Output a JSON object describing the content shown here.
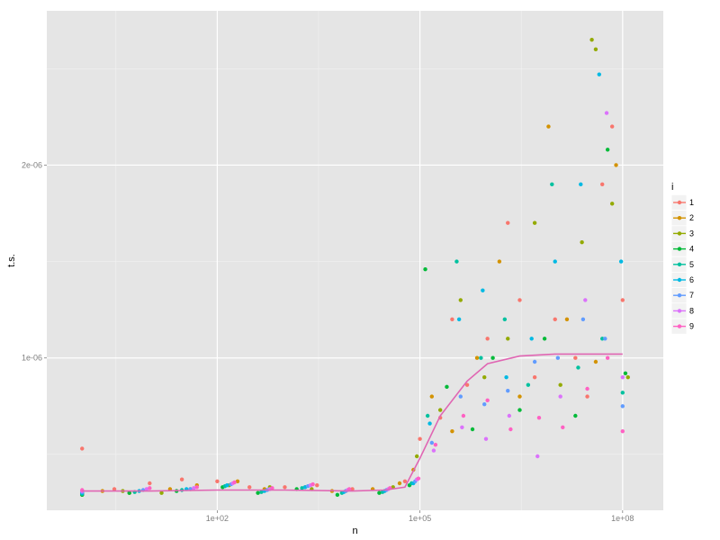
{
  "chart_data": {
    "type": "scatter",
    "title": "",
    "xlabel": "n",
    "ylabel": "t.s.",
    "x_scale": "log10",
    "xlim": [
      0.3,
      400000000
    ],
    "ylim": [
      2.1e-07,
      2.8e-06
    ],
    "x_ticks": [
      {
        "value": 100,
        "label": "1e+02"
      },
      {
        "value": 100000,
        "label": "1e+05"
      },
      {
        "value": 100000000,
        "label": "1e+08"
      }
    ],
    "y_ticks": [
      {
        "value": 1e-06,
        "label": "1e-06"
      },
      {
        "value": 2e-06,
        "label": "2e-06"
      }
    ],
    "grid": true,
    "legend": {
      "title": "i",
      "position": "right",
      "entries": [
        "1",
        "2",
        "3",
        "4",
        "5",
        "6",
        "7",
        "8",
        "9"
      ]
    },
    "colors": [
      "#F8766D",
      "#D39200",
      "#93AA00",
      "#00BA38",
      "#00C19F",
      "#00B9E3",
      "#619CFF",
      "#DB72FB",
      "#FF61C3"
    ],
    "smooth_color": "#E066B3",
    "smooth_line": {
      "x": [
        1,
        10,
        100,
        1000,
        10000,
        30000,
        60000,
        100000,
        200000,
        500000,
        1000000,
        3000000,
        10000000,
        30000000,
        100000000
      ],
      "y": [
        3.1e-07,
        3.1e-07,
        3.15e-07,
        3.15e-07,
        3.1e-07,
        3.15e-07,
        3.3e-07,
        4.8e-07,
        7e-07,
        8.8e-07,
        9.7e-07,
        1.01e-06,
        1.02e-06,
        1.02e-06,
        1.02e-06
      ]
    },
    "series": [
      {
        "name": "1",
        "points": [
          [
            1,
            5.3e-07
          ],
          [
            1,
            3e-07
          ],
          [
            3,
            3.2e-07
          ],
          [
            10,
            3.5e-07
          ],
          [
            30,
            3.7e-07
          ],
          [
            100,
            3.6e-07
          ],
          [
            300,
            3.3e-07
          ],
          [
            1000,
            3.3e-07
          ],
          [
            3000,
            3.4e-07
          ],
          [
            10000,
            3.2e-07
          ],
          [
            30000,
            3.1e-07
          ],
          [
            60000,
            3.6e-07
          ],
          [
            100000,
            5.8e-07
          ],
          [
            200000,
            6.9e-07
          ],
          [
            300000,
            1.2e-06
          ],
          [
            500000,
            8.6e-07
          ],
          [
            1000000,
            1.1e-06
          ],
          [
            2000000,
            1.7e-06
          ],
          [
            3000000,
            1.3e-06
          ],
          [
            5000000,
            9e-07
          ],
          [
            10000000,
            1.2e-06
          ],
          [
            20000000,
            1e-06
          ],
          [
            30000000,
            8e-07
          ],
          [
            50000000,
            1.9e-06
          ],
          [
            70000000,
            2.2e-06
          ],
          [
            100000000,
            1.3e-06
          ]
        ]
      },
      {
        "name": "2",
        "points": [
          [
            1,
            2.9e-07
          ],
          [
            2,
            3.1e-07
          ],
          [
            5,
            3e-07
          ],
          [
            20,
            3.2e-07
          ],
          [
            50,
            3.4e-07
          ],
          [
            200,
            3.6e-07
          ],
          [
            500,
            3.2e-07
          ],
          [
            2000,
            3.3e-07
          ],
          [
            5000,
            3.1e-07
          ],
          [
            20000,
            3.2e-07
          ],
          [
            50000,
            3.5e-07
          ],
          [
            80000,
            4.2e-07
          ],
          [
            150000,
            8e-07
          ],
          [
            300000,
            6.2e-07
          ],
          [
            700000,
            1e-06
          ],
          [
            1500000,
            1.5e-06
          ],
          [
            3000000,
            8e-07
          ],
          [
            8000000,
            2.2e-06
          ],
          [
            15000000,
            1.2e-06
          ],
          [
            40000000,
            9.8e-07
          ],
          [
            80000000,
            2e-06
          ]
        ]
      },
      {
        "name": "3",
        "points": [
          [
            1,
            3e-07
          ],
          [
            4,
            3.1e-07
          ],
          [
            15,
            3e-07
          ],
          [
            40,
            3.2e-07
          ],
          [
            150,
            3.4e-07
          ],
          [
            600,
            3.3e-07
          ],
          [
            2500,
            3.2e-07
          ],
          [
            8000,
            3.1e-07
          ],
          [
            40000,
            3.3e-07
          ],
          [
            90000,
            4.9e-07
          ],
          [
            200000,
            7.3e-07
          ],
          [
            400000,
            1.3e-06
          ],
          [
            900000,
            9e-07
          ],
          [
            2000000,
            1.1e-06
          ],
          [
            5000000,
            1.7e-06
          ],
          [
            12000000,
            8.6e-07
          ],
          [
            25000000,
            1.6e-06
          ],
          [
            35000000,
            2.65e-06
          ],
          [
            40000000,
            2.6e-06
          ],
          [
            70000000,
            1.8e-06
          ],
          [
            120000000,
            9e-07
          ]
        ]
      },
      {
        "name": "4",
        "points": [
          [
            1,
            2.9e-07
          ],
          [
            5,
            3e-07
          ],
          [
            25,
            3.1e-07
          ],
          [
            120,
            3.3e-07
          ],
          [
            400,
            3e-07
          ],
          [
            1500,
            3.2e-07
          ],
          [
            6000,
            2.9e-07
          ],
          [
            25000,
            3e-07
          ],
          [
            70000,
            3.4e-07
          ],
          [
            120000,
            1.46e-06
          ],
          [
            250000,
            8.5e-07
          ],
          [
            600000,
            6.3e-07
          ],
          [
            1200000,
            1e-06
          ],
          [
            3000000,
            7.3e-07
          ],
          [
            7000000,
            1.1e-06
          ],
          [
            20000000,
            7e-07
          ],
          [
            60000000,
            2.08e-06
          ],
          [
            110000000,
            9.2e-07
          ]
        ]
      },
      {
        "name": "5",
        "points": [
          [
            1,
            2.95e-07
          ],
          [
            6,
            3.05e-07
          ],
          [
            30,
            3.15e-07
          ],
          [
            130,
            3.35e-07
          ],
          [
            450,
            3.05e-07
          ],
          [
            1800,
            3.25e-07
          ],
          [
            7000,
            3e-07
          ],
          [
            28000,
            3.05e-07
          ],
          [
            75000,
            3.5e-07
          ],
          [
            130000,
            7e-07
          ],
          [
            350000,
            1.5e-06
          ],
          [
            800000,
            1e-06
          ],
          [
            1800000,
            1.2e-06
          ],
          [
            4000000,
            8.6e-07
          ],
          [
            9000000,
            1.9e-06
          ],
          [
            22000000,
            9.5e-07
          ],
          [
            50000000,
            1.1e-06
          ],
          [
            100000000,
            8.2e-07
          ]
        ]
      },
      {
        "name": "6",
        "points": [
          [
            1,
            3e-07
          ],
          [
            7,
            3.1e-07
          ],
          [
            35,
            3.2e-07
          ],
          [
            140,
            3.4e-07
          ],
          [
            500,
            3.1e-07
          ],
          [
            2000,
            3.3e-07
          ],
          [
            7500,
            3.05e-07
          ],
          [
            30000,
            3.1e-07
          ],
          [
            80000,
            3.5e-07
          ],
          [
            140000,
            6.6e-07
          ],
          [
            380000,
            1.2e-06
          ],
          [
            850000,
            1.35e-06
          ],
          [
            1900000,
            9e-07
          ],
          [
            4500000,
            1.1e-06
          ],
          [
            10000000,
            1.5e-06
          ],
          [
            24000000,
            1.9e-06
          ],
          [
            45000000,
            2.47e-06
          ],
          [
            95000000,
            1.5e-06
          ]
        ]
      },
      {
        "name": "7",
        "points": [
          [
            1,
            3.05e-07
          ],
          [
            8,
            3.15e-07
          ],
          [
            40,
            3.2e-07
          ],
          [
            160,
            3.45e-07
          ],
          [
            550,
            3.15e-07
          ],
          [
            2200,
            3.35e-07
          ],
          [
            8000,
            3.1e-07
          ],
          [
            32000,
            3.15e-07
          ],
          [
            85000,
            3.6e-07
          ],
          [
            150000,
            5.6e-07
          ],
          [
            400000,
            8e-07
          ],
          [
            900000,
            7.6e-07
          ],
          [
            2000000,
            8.3e-07
          ],
          [
            5000000,
            9.8e-07
          ],
          [
            11000000,
            1e-06
          ],
          [
            26000000,
            1.2e-06
          ],
          [
            55000000,
            1.1e-06
          ],
          [
            100000000,
            7.5e-07
          ]
        ]
      },
      {
        "name": "8",
        "points": [
          [
            1,
            3.1e-07
          ],
          [
            9,
            3.2e-07
          ],
          [
            45,
            3.25e-07
          ],
          [
            170,
            3.5e-07
          ],
          [
            600,
            3.2e-07
          ],
          [
            2400,
            3.4e-07
          ],
          [
            8500,
            3.15e-07
          ],
          [
            34000,
            3.2e-07
          ],
          [
            90000,
            3.7e-07
          ],
          [
            160000,
            5.2e-07
          ],
          [
            420000,
            6.4e-07
          ],
          [
            950000,
            5.8e-07
          ],
          [
            2100000,
            7e-07
          ],
          [
            5500000,
            4.9e-07
          ],
          [
            12000000,
            8e-07
          ],
          [
            28000000,
            1.3e-06
          ],
          [
            58000000,
            2.27e-06
          ],
          [
            100000000,
            9e-07
          ]
        ]
      },
      {
        "name": "9",
        "points": [
          [
            1,
            3.15e-07
          ],
          [
            10,
            3.25e-07
          ],
          [
            50,
            3.3e-07
          ],
          [
            180,
            3.55e-07
          ],
          [
            650,
            3.25e-07
          ],
          [
            2600,
            3.45e-07
          ],
          [
            9000,
            3.2e-07
          ],
          [
            36000,
            3.25e-07
          ],
          [
            95000,
            3.75e-07
          ],
          [
            170000,
            5.5e-07
          ],
          [
            440000,
            7e-07
          ],
          [
            1000000,
            7.8e-07
          ],
          [
            2200000,
            6.3e-07
          ],
          [
            5800000,
            6.9e-07
          ],
          [
            13000000,
            6.4e-07
          ],
          [
            30000000,
            8.4e-07
          ],
          [
            60000000,
            1e-06
          ],
          [
            100000000,
            6.2e-07
          ]
        ]
      }
    ]
  }
}
